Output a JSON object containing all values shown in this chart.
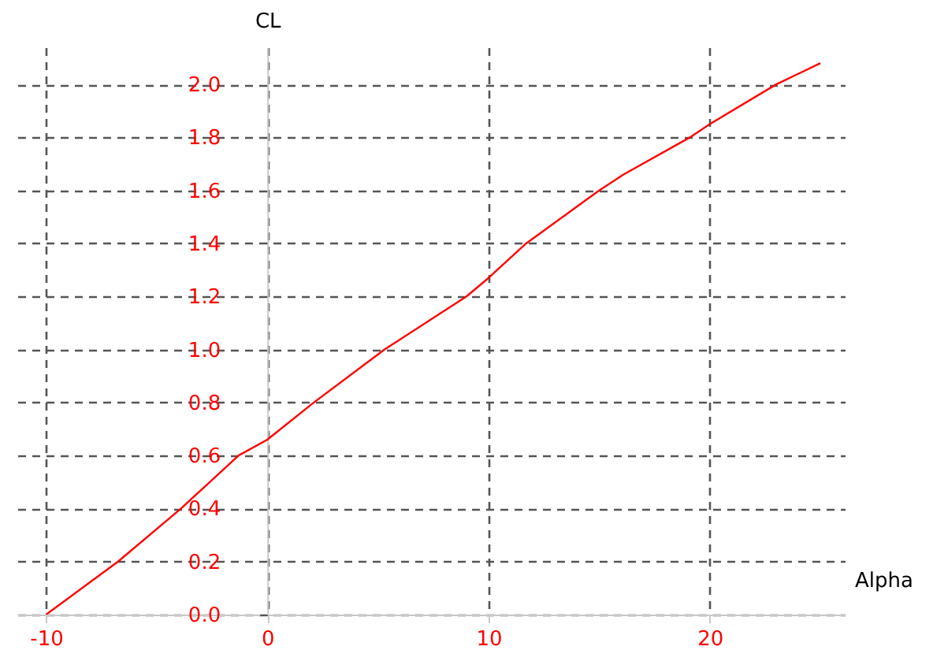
{
  "chart_data": {
    "type": "line",
    "xlabel": "Alpha",
    "ylabel": "CL",
    "x": [
      -10,
      -6.75,
      -3.9,
      -1.3,
      0,
      2.1,
      5.3,
      9,
      10,
      11.7,
      15,
      16.1,
      19.1,
      20,
      23,
      25
    ],
    "series": [
      {
        "color": "#ff0000",
        "values": [
          0,
          0.2,
          0.4,
          0.6,
          0.66,
          0.8,
          1.0,
          1.2,
          1.27,
          1.4,
          1.6,
          1.66,
          1.8,
          1.85,
          2.0,
          2.08
        ]
      }
    ],
    "xlim": [
      -11.3,
      26.1
    ],
    "ylim": [
      0,
      2.14
    ],
    "xticks": [
      -10,
      0,
      10,
      20
    ],
    "yticks": [
      {
        "value": 0,
        "label": "0.0"
      },
      {
        "value": 0.2,
        "label": "0.2"
      },
      {
        "value": 0.4,
        "label": "0.4"
      },
      {
        "value": 0.6,
        "label": "0.6"
      },
      {
        "value": 0.8,
        "label": "0.8"
      },
      {
        "value": 1.0,
        "label": "1.0"
      },
      {
        "value": 1.2,
        "label": "1.2"
      },
      {
        "value": 1.4,
        "label": "1.4"
      },
      {
        "value": 1.6,
        "label": "1.6"
      },
      {
        "value": 1.8,
        "label": "1.8"
      },
      {
        "value": 2.0,
        "label": "2.0"
      }
    ],
    "grid": true,
    "marker": "none",
    "line_style": "solid"
  }
}
